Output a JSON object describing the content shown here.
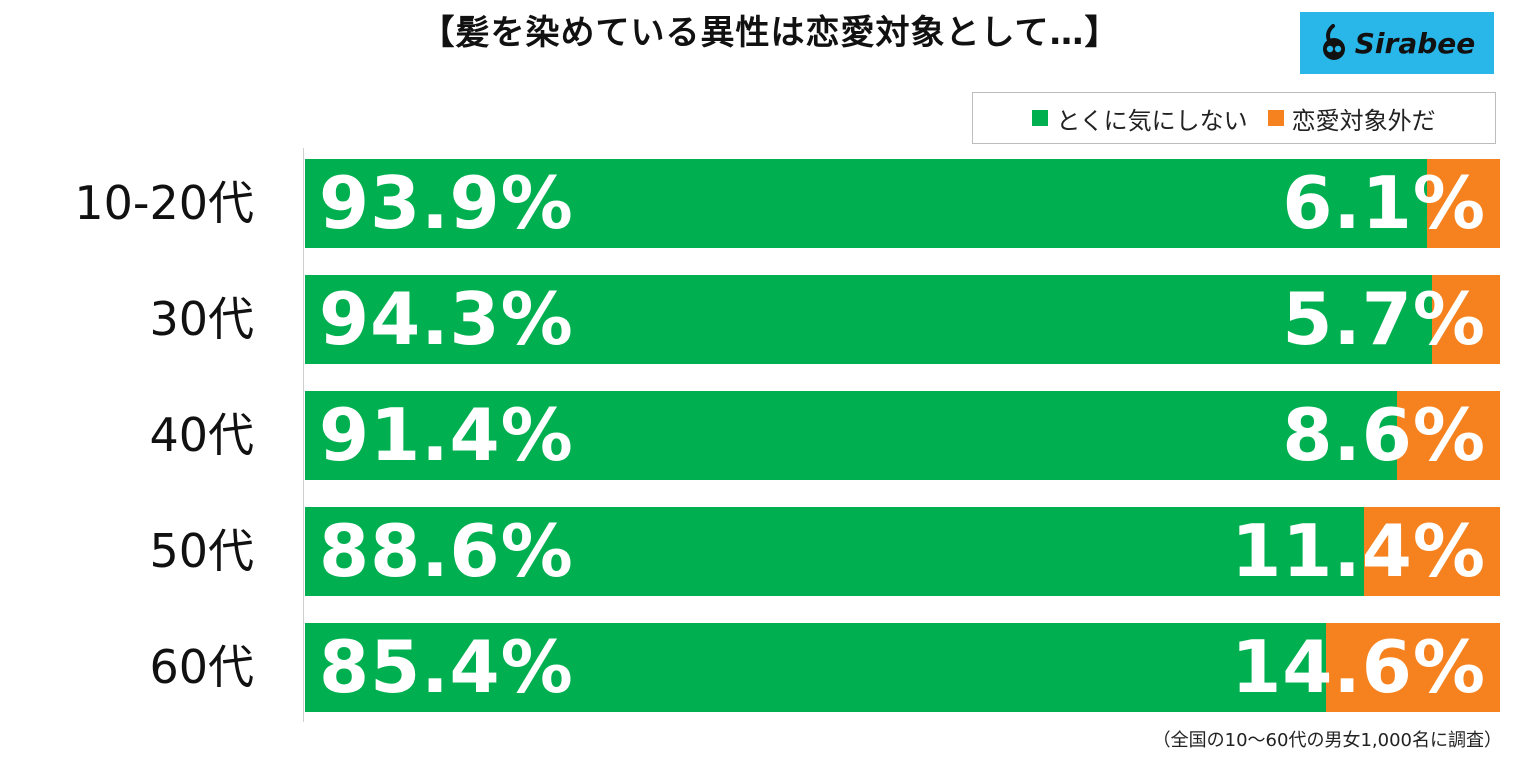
{
  "title": "【髪を染めている異性は恋愛対象として…】",
  "logo": {
    "text": "Sirabee",
    "bg_color": "#29b6e9"
  },
  "legend": [
    {
      "label": "とくに気にしない",
      "color": "#00b050"
    },
    {
      "label": "恋愛対象外だ",
      "color": "#f6821f"
    }
  ],
  "footnote": "（全国の10〜60代の男女1,000名に調査）",
  "chart_data": {
    "type": "bar",
    "orientation": "horizontal",
    "stacked": true,
    "normalized_to": 100,
    "categories": [
      "10-20代",
      "30代",
      "40代",
      "50代",
      "60代"
    ],
    "series": [
      {
        "name": "とくに気にしない",
        "color": "#00b050",
        "values": [
          93.9,
          94.3,
          91.4,
          88.6,
          85.4
        ]
      },
      {
        "name": "恋愛対象外だ",
        "color": "#f6821f",
        "values": [
          6.1,
          5.7,
          8.6,
          11.4,
          14.6
        ]
      }
    ],
    "value_labels": [
      [
        "93.9%",
        "94.3%",
        "91.4%",
        "88.6%",
        "85.4%"
      ],
      [
        "6.1%",
        "5.7%",
        "8.6%",
        "11.4%",
        "14.6%"
      ]
    ],
    "title": "【髪を染めている異性は恋愛対象として…】",
    "xlim": [
      0,
      100
    ],
    "legend_position": "top-right",
    "grid": false
  }
}
